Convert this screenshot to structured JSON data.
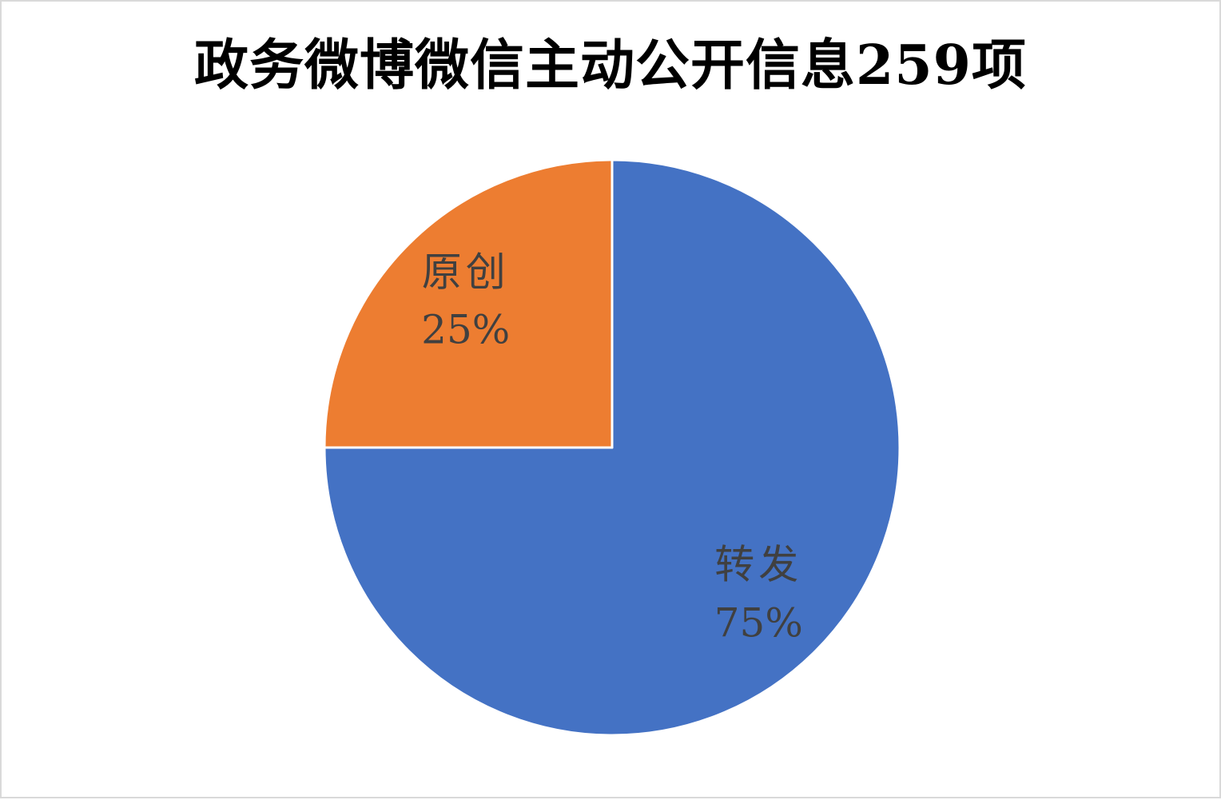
{
  "page": {
    "background": "#FFFFFF",
    "border_color": "#D9D9D9"
  },
  "title": "政务微博微信主动公开信息259项",
  "chart_data": {
    "type": "pie",
    "title": "政务微博微信主动公开信息259项",
    "total_items_in_title": 259,
    "start_angle_deg": 0,
    "direction": "clockwise",
    "legend": "none",
    "separator_color": "#FFFFFF",
    "label_color": "#404040",
    "data_label_style": "category name and percentage inside slice",
    "slices": [
      {
        "id": "zhuanfa",
        "label": "转发",
        "value": 75,
        "percent_label": "75%",
        "color": "#4472C4"
      },
      {
        "id": "yuanchuan",
        "label": "原创",
        "value": 25,
        "percent_label": "25%",
        "color": "#ED7D31"
      }
    ]
  }
}
